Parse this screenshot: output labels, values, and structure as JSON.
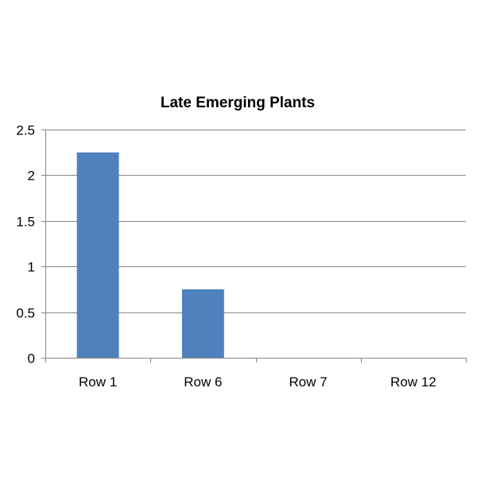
{
  "chart_data": {
    "type": "bar",
    "title": "Late Emerging Plants",
    "xlabel": "",
    "ylabel": "",
    "categories": [
      "Row 1",
      "Row 6",
      "Row 7",
      "Row 12"
    ],
    "values": [
      2.25,
      0.75,
      0,
      0
    ],
    "ylim": [
      0,
      2.5
    ],
    "yticks": [
      0,
      0.5,
      1,
      1.5,
      2,
      2.5
    ],
    "ytick_labels": [
      "0",
      "0.5",
      "1",
      "1.5",
      "2",
      "2.5"
    ],
    "grid": true,
    "legend": "none",
    "bar_color": "#4f81bd",
    "grid_color": "#868686",
    "axis_color": "#868686"
  }
}
